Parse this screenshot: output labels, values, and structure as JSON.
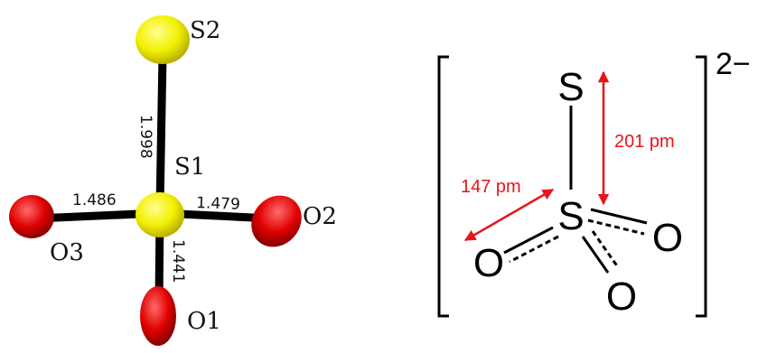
{
  "ortep": {
    "atoms": [
      "S2",
      "S1",
      "O3",
      "O2",
      "O1"
    ],
    "bond_lengths": [
      "1.998",
      "1.486",
      "1.479",
      "1.441"
    ]
  },
  "lewis": {
    "atoms": [
      "S",
      "S",
      "O",
      "O",
      "O"
    ],
    "charge": "2−",
    "distances": [
      "201 pm",
      "147 pm"
    ]
  }
}
